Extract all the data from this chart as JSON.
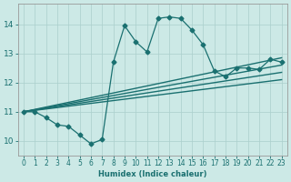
{
  "xlabel": "Humidex (Indice chaleur)",
  "xlim": [
    -0.5,
    23.5
  ],
  "ylim": [
    9.5,
    14.7
  ],
  "xticks": [
    0,
    1,
    2,
    3,
    4,
    5,
    6,
    7,
    8,
    9,
    10,
    11,
    12,
    13,
    14,
    15,
    16,
    17,
    18,
    19,
    20,
    21,
    22,
    23
  ],
  "yticks": [
    10,
    11,
    12,
    13,
    14
  ],
  "background_color": "#cce9e6",
  "grid_color": "#aacfcc",
  "line_color": "#1a7070",
  "figsize": [
    3.2,
    2.0
  ],
  "dpi": 100,
  "series_main": {
    "x": [
      0,
      1,
      2,
      3,
      4,
      5,
      6,
      7,
      8,
      9,
      10,
      11,
      12,
      13,
      14,
      15,
      16,
      17,
      18,
      19,
      20,
      21,
      22,
      23
    ],
    "y": [
      11.0,
      11.0,
      10.8,
      10.55,
      10.5,
      10.2,
      9.9,
      10.05,
      12.7,
      13.95,
      13.4,
      13.05,
      14.2,
      14.25,
      14.2,
      13.8,
      13.3,
      12.4,
      12.2,
      12.5,
      12.5,
      12.45,
      12.8,
      12.7
    ],
    "marker": "D",
    "markersize": 2.5,
    "linewidth": 0.9,
    "color": "#1a7070"
  },
  "series_linear": [
    {
      "x0": 0,
      "y0": 11.0,
      "x1": 23,
      "y1": 12.85,
      "linewidth": 1.0
    },
    {
      "x0": 0,
      "y0": 11.0,
      "x1": 23,
      "y1": 12.6,
      "linewidth": 1.0
    },
    {
      "x0": 0,
      "y0": 11.0,
      "x1": 23,
      "y1": 12.35,
      "linewidth": 1.0
    },
    {
      "x0": 0,
      "y0": 11.0,
      "x1": 23,
      "y1": 12.1,
      "linewidth": 1.0
    }
  ]
}
